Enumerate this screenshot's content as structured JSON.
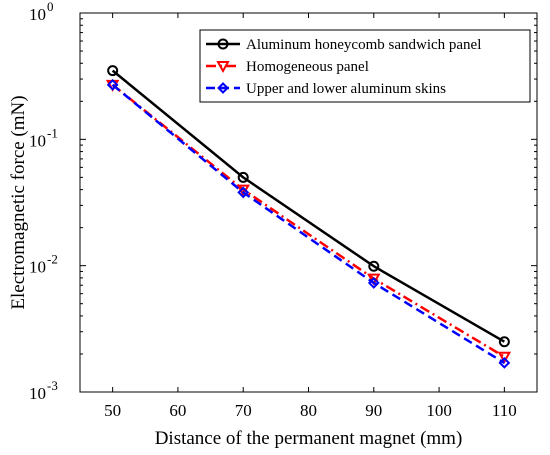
{
  "chart_data": {
    "type": "line",
    "xlabel": "Distance of the permanent magnet (mm)",
    "ylabel": "Electromagnetic force (mN)",
    "xlim": [
      45,
      115
    ],
    "ylim": [
      0.001,
      1
    ],
    "yscale": "log",
    "x_ticks": [
      50,
      60,
      70,
      80,
      90,
      100,
      110
    ],
    "x_tick_labels": [
      "50",
      "60",
      "70",
      "80",
      "90",
      "100",
      "110"
    ],
    "y_ticks": [
      0.001,
      0.01,
      0.1,
      1
    ],
    "y_tick_labels": [
      {
        "base": "10",
        "exp": "-3"
      },
      {
        "base": "10",
        "exp": "-2"
      },
      {
        "base": "10",
        "exp": "-1"
      },
      {
        "base": "10",
        "exp": "0"
      }
    ],
    "grid": false,
    "legend_position": "top-right",
    "x": [
      50,
      70,
      90,
      110
    ],
    "series": [
      {
        "name": "Aluminum honeycomb sandwich panel",
        "values": [
          0.35,
          0.05,
          0.0099,
          0.0025
        ],
        "color": "#000000",
        "dash": "solid",
        "marker": "circle"
      },
      {
        "name": "Homogeneous panel",
        "values": [
          0.27,
          0.04,
          0.0079,
          0.0019
        ],
        "color": "#ff0000",
        "dash": "dashdot",
        "marker": "triangle-down"
      },
      {
        "name": "Upper and lower aluminum skins",
        "values": [
          0.27,
          0.038,
          0.0073,
          0.0017
        ],
        "color": "#0000ff",
        "dash": "dashed",
        "marker": "diamond"
      }
    ]
  }
}
